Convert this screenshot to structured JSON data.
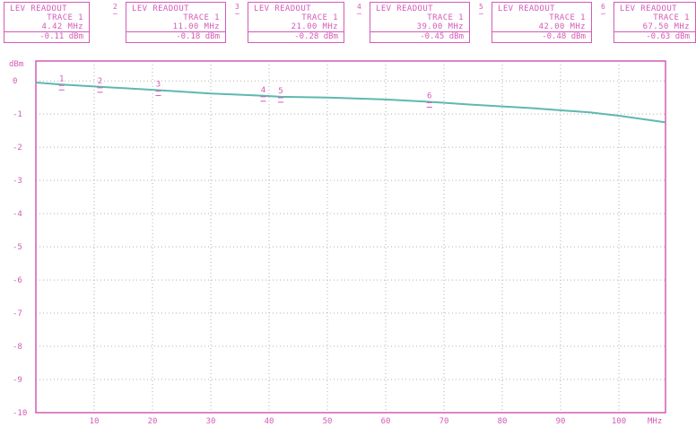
{
  "readouts": [
    {
      "marker": "1",
      "title": "LEV READOUT",
      "trace": "TRACE 1",
      "freq": "4.42 MHz",
      "level": "-0.11 dBm"
    },
    {
      "marker": "2",
      "title": "LEV READOUT",
      "trace": "TRACE 1",
      "freq": "11.00 MHz",
      "level": "-0.18 dBm"
    },
    {
      "marker": "3",
      "title": "LEV READOUT",
      "trace": "TRACE 1",
      "freq": "21.00 MHz",
      "level": "-0.28 dBm"
    },
    {
      "marker": "4",
      "title": "LEV READOUT",
      "trace": "TRACE 1",
      "freq": "39.00 MHz",
      "level": "-0.45 dBm"
    },
    {
      "marker": "5",
      "title": "LEV READOUT",
      "trace": "TRACE 1",
      "freq": "42.00 MHz",
      "level": "-0.48 dBm"
    },
    {
      "marker": "6",
      "title": "LEV READOUT",
      "trace": "TRACE 1",
      "freq": "67.50 MHz",
      "level": "-0.63 dBm"
    }
  ],
  "colors": {
    "frame": "#d45ab8",
    "grid": "#b0b0b0",
    "trace": "#5fb8b0",
    "text": "#d45ab8"
  },
  "chart_data": {
    "type": "line",
    "ylabel": "dBm",
    "xlabel": "MHz",
    "xlim": [
      0,
      108
    ],
    "ylim": [
      -10,
      0.6
    ],
    "x_ticks": [
      10,
      20,
      30,
      40,
      50,
      60,
      70,
      80,
      90,
      100
    ],
    "x_tick_labels": [
      "10",
      "20",
      "30",
      "40",
      "50",
      "60",
      "70",
      "80",
      "90",
      "100"
    ],
    "x_unit_label": "MHz",
    "y_ticks": [
      0,
      -1,
      -2,
      -3,
      -4,
      -5,
      -6,
      -7,
      -8,
      -9,
      -10
    ],
    "y_tick_labels": [
      "0",
      "-1",
      "-2",
      "-3",
      "-4",
      "-5",
      "-6",
      "-7",
      "-8",
      "-9",
      "-10"
    ],
    "y_unit_label": "dBm",
    "grid": true,
    "series": [
      {
        "x": [
          0,
          4.42,
          11,
          21,
          30,
          39,
          42,
          50,
          60,
          67.5,
          75,
          85,
          95,
          100,
          108
        ],
        "y": [
          -0.05,
          -0.11,
          -0.18,
          -0.28,
          -0.38,
          -0.45,
          -0.48,
          -0.5,
          -0.56,
          -0.63,
          -0.72,
          -0.82,
          -0.95,
          -1.05,
          -1.25
        ]
      }
    ],
    "markers": [
      {
        "label": "1",
        "x": 4.42,
        "y": -0.11
      },
      {
        "label": "2",
        "x": 11,
        "y": -0.18
      },
      {
        "label": "3",
        "x": 21,
        "y": -0.28
      },
      {
        "label": "4",
        "x": 39,
        "y": -0.45
      },
      {
        "label": "5",
        "x": 42,
        "y": -0.48
      },
      {
        "label": "6",
        "x": 67.5,
        "y": -0.63
      }
    ]
  }
}
